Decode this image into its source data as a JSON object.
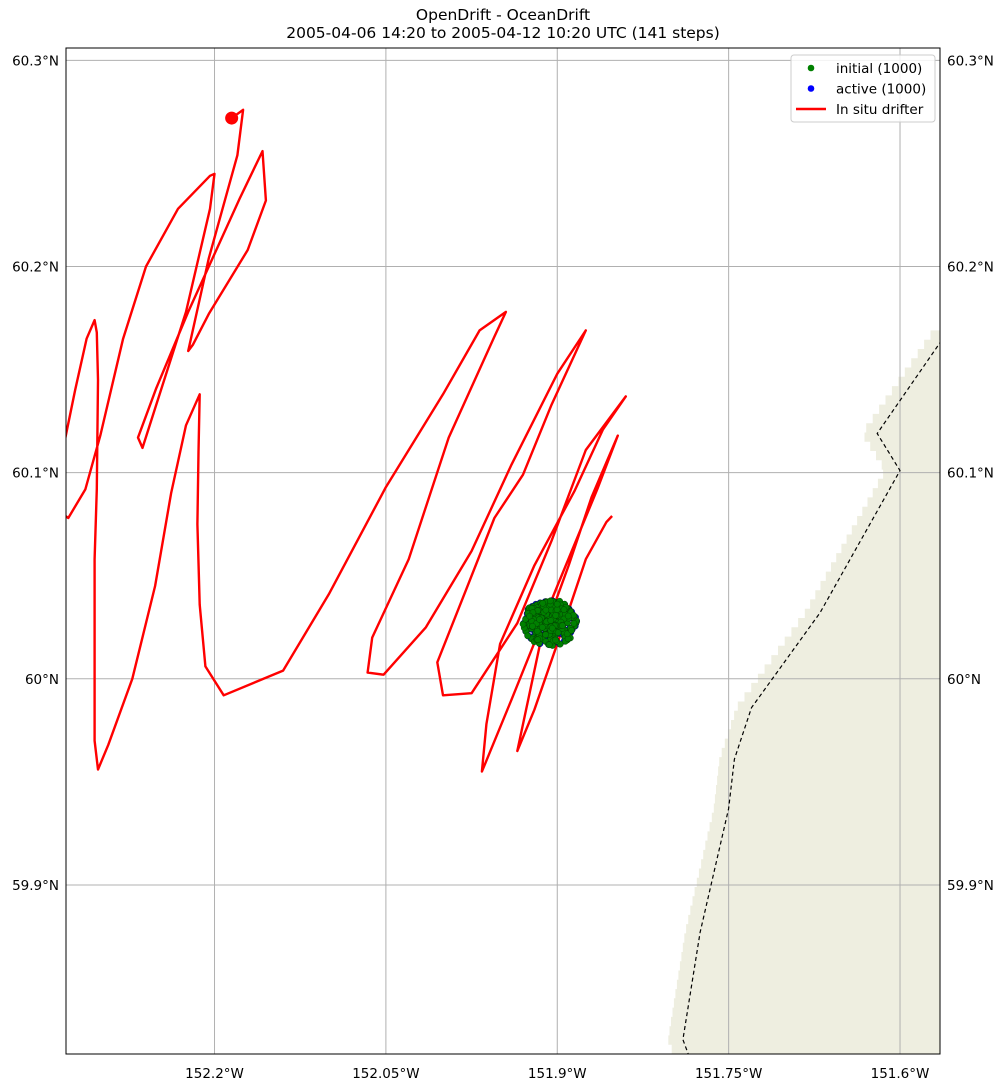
{
  "title": {
    "line1": "OpenDrift - OceanDrift",
    "line2": "2005-04-06 14:20 to 2005-04-12 10:20 UTC (141 steps)"
  },
  "colors": {
    "land": "#eeeee0",
    "grid": "#b0b0b0",
    "drifter": "#ff0000",
    "initial": "#008000",
    "active": "#0000ff",
    "coastline": "#000000"
  },
  "chart_data": {
    "type": "map",
    "extent": {
      "lon": [
        -152.33,
        -151.565
      ],
      "lat": [
        59.818,
        60.306
      ]
    },
    "xticks": [
      {
        "value": -152.2,
        "label": "152.2°W"
      },
      {
        "value": -152.05,
        "label": "152.05°W"
      },
      {
        "value": -151.9,
        "label": "151.9°W"
      },
      {
        "value": -151.75,
        "label": "151.75°W"
      },
      {
        "value": -151.6,
        "label": "151.6°W"
      }
    ],
    "yticks": [
      {
        "value": 60.3,
        "label": "60.3°N"
      },
      {
        "value": 60.2,
        "label": "60.2°N"
      },
      {
        "value": 60.1,
        "label": "60.1°N"
      },
      {
        "value": 60.0,
        "label": "60°N"
      },
      {
        "value": 59.9,
        "label": "59.9°N"
      }
    ],
    "grid": true,
    "legend": {
      "placement": "top-right",
      "entries": [
        {
          "label": "initial (1000)",
          "marker": "dot",
          "color": "#008000"
        },
        {
          "label": "active (1000)",
          "marker": "dot",
          "color": "#0000ff"
        },
        {
          "label": "In situ drifter",
          "marker": "line",
          "color": "#ff0000"
        }
      ]
    },
    "drifter_track": [
      [
        -152.185,
        60.272
      ],
      [
        -152.175,
        60.276
      ],
      [
        -152.18,
        60.254
      ],
      [
        -152.205,
        60.204
      ],
      [
        -152.223,
        60.159
      ],
      [
        -152.219,
        60.162
      ],
      [
        -152.205,
        60.177
      ],
      [
        -152.171,
        60.208
      ],
      [
        -152.155,
        60.232
      ],
      [
        -152.158,
        60.256
      ],
      [
        -152.178,
        60.233
      ],
      [
        -152.223,
        60.178
      ],
      [
        -152.251,
        60.141
      ],
      [
        -152.267,
        60.117
      ],
      [
        -152.263,
        60.112
      ],
      [
        -152.251,
        60.133
      ],
      [
        -152.225,
        60.178
      ],
      [
        -152.204,
        60.228
      ],
      [
        -152.2,
        60.245
      ],
      [
        -152.204,
        60.244
      ],
      [
        -152.232,
        60.228
      ],
      [
        -152.26,
        60.2
      ],
      [
        -152.28,
        60.165
      ],
      [
        -152.3,
        60.118
      ],
      [
        -152.313,
        60.092
      ],
      [
        -152.328,
        60.078
      ],
      [
        -152.333,
        60.08
      ],
      [
        -152.332,
        60.113
      ],
      [
        -152.322,
        60.14
      ],
      [
        -152.312,
        60.165
      ],
      [
        -152.305,
        60.174
      ],
      [
        -152.303,
        60.168
      ],
      [
        -152.302,
        60.145
      ],
      [
        -152.303,
        60.092
      ],
      [
        -152.305,
        60.058
      ],
      [
        -152.305,
        59.97
      ],
      [
        -152.302,
        59.956
      ],
      [
        -152.293,
        59.968
      ],
      [
        -152.272,
        60.0
      ],
      [
        -152.252,
        60.045
      ],
      [
        -152.238,
        60.09
      ],
      [
        -152.225,
        60.123
      ],
      [
        -152.213,
        60.138
      ],
      [
        -152.214,
        60.11
      ],
      [
        -152.215,
        60.075
      ],
      [
        -152.213,
        60.036
      ],
      [
        -152.208,
        60.006
      ],
      [
        -152.192,
        59.992
      ],
      [
        -152.14,
        60.004
      ],
      [
        -152.1,
        60.041
      ],
      [
        -152.05,
        60.093
      ],
      [
        -152.0,
        60.138
      ],
      [
        -151.968,
        60.169
      ],
      [
        -151.945,
        60.178
      ],
      [
        -151.955,
        60.166
      ],
      [
        -151.995,
        60.117
      ],
      [
        -152.03,
        60.058
      ],
      [
        -152.062,
        60.02
      ],
      [
        -152.066,
        60.003
      ],
      [
        -152.052,
        60.002
      ],
      [
        -152.015,
        60.025
      ],
      [
        -151.975,
        60.062
      ],
      [
        -151.94,
        60.104
      ],
      [
        -151.9,
        60.148
      ],
      [
        -151.875,
        60.169
      ],
      [
        -151.905,
        60.133
      ],
      [
        -151.93,
        60.099
      ],
      [
        -151.955,
        60.078
      ],
      [
        -151.98,
        60.043
      ],
      [
        -152.005,
        60.008
      ],
      [
        -152.0,
        59.992
      ],
      [
        -151.975,
        59.993
      ],
      [
        -151.935,
        60.027
      ],
      [
        -151.905,
        60.067
      ],
      [
        -151.875,
        60.111
      ],
      [
        -151.84,
        60.137
      ],
      [
        -151.86,
        60.121
      ],
      [
        -151.885,
        60.091
      ],
      [
        -151.92,
        60.055
      ],
      [
        -151.95,
        60.017
      ],
      [
        -151.962,
        59.978
      ],
      [
        -151.966,
        59.955
      ],
      [
        -151.96,
        59.963
      ],
      [
        -151.94,
        59.99
      ],
      [
        -151.9,
        60.045
      ],
      [
        -151.865,
        60.092
      ],
      [
        -151.847,
        60.118
      ],
      [
        -151.87,
        60.088
      ],
      [
        -151.89,
        60.055
      ],
      [
        -151.915,
        60.017
      ],
      [
        -151.935,
        59.965
      ],
      [
        -151.92,
        59.985
      ],
      [
        -151.895,
        60.025
      ],
      [
        -151.875,
        60.058
      ],
      [
        -151.857,
        60.076
      ],
      [
        -151.852,
        60.079
      ]
    ],
    "drifter_start": [
      -152.185,
      60.272
    ],
    "particle_cluster": {
      "center": [
        -151.907,
        60.027
      ],
      "radius_deg": [
        0.024,
        0.011
      ]
    },
    "coastline": [
      [
        -151.56,
        60.167
      ],
      [
        -151.62,
        60.119
      ],
      [
        -151.6,
        60.101
      ],
      [
        -151.67,
        60.032
      ],
      [
        -151.73,
        59.986
      ],
      [
        -151.745,
        59.961
      ],
      [
        -151.75,
        59.937
      ],
      [
        -151.775,
        59.877
      ],
      [
        -151.79,
        59.825
      ],
      [
        -151.78,
        59.81
      ]
    ]
  }
}
